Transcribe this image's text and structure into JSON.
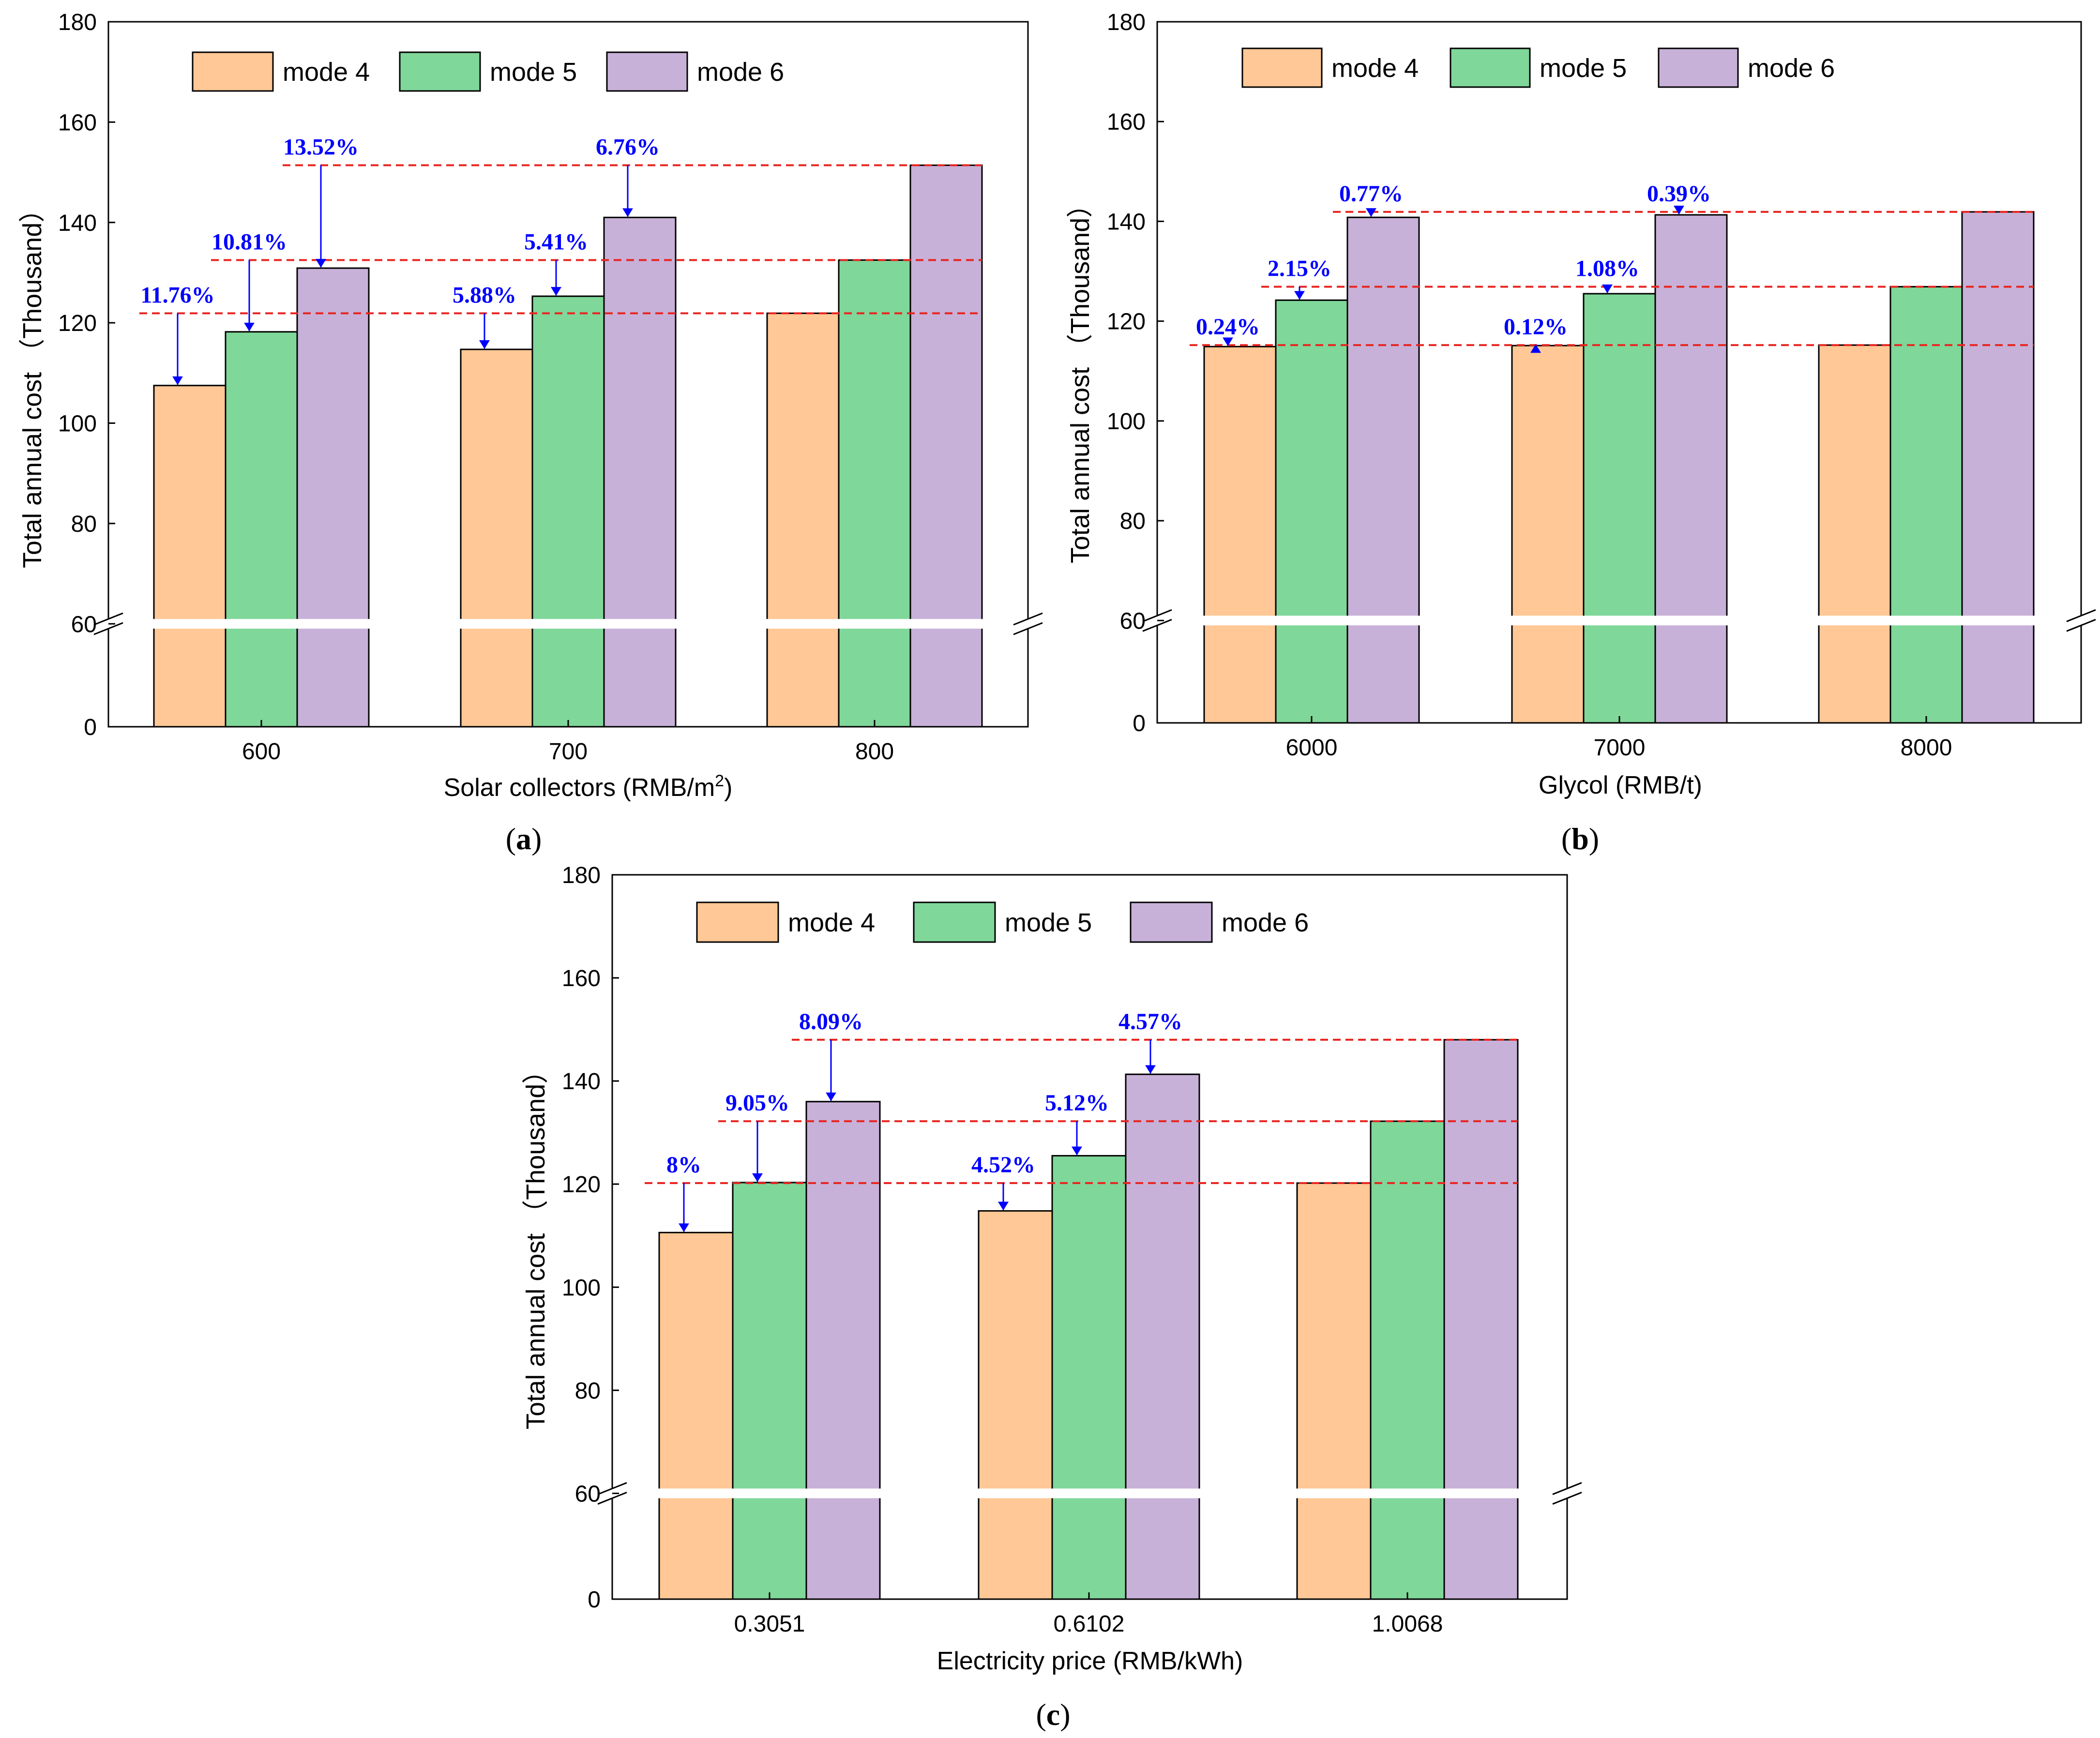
{
  "colors": {
    "mode4": "#FFC896",
    "mode5": "#7FD79A",
    "mode6": "#C8B1D8",
    "annotation": "#0000FF",
    "reference_line": "#E8231F",
    "axis": "#000000"
  },
  "chart_data": [
    {
      "type": "bar",
      "panel_label_open": "(",
      "panel_label_letter": "a",
      "panel_label_close": ")",
      "xlabel": "Solar collectors (RMB/m",
      "xlabel_sup": "2",
      "xlabel_end": ")",
      "ylabel": "Total annual cost （Thousand）",
      "ylim": [
        0,
        180
      ],
      "axis_break": [
        0,
        60
      ],
      "yticks": [
        "0",
        "60",
        "80",
        "100",
        "120",
        "140",
        "160",
        "180"
      ],
      "legend": [
        "mode 4",
        "mode 5",
        "mode 6"
      ],
      "legend_position": "top-left",
      "categories": [
        "600",
        "700",
        "800"
      ],
      "series": [
        {
          "name": "mode 4",
          "values": [
            107.5,
            114.7,
            121.9
          ]
        },
        {
          "name": "mode 5",
          "values": [
            118.2,
            125.3,
            132.5
          ]
        },
        {
          "name": "mode 6",
          "values": [
            130.9,
            141.0,
            151.4
          ]
        }
      ],
      "annotations": [
        {
          "text": "11.76%",
          "category": 0,
          "series": 0,
          "ref_category": 2
        },
        {
          "text": "10.81%",
          "category": 0,
          "series": 1,
          "ref_category": 2
        },
        {
          "text": "13.52%",
          "category": 0,
          "series": 2,
          "ref_category": 2
        },
        {
          "text": "5.88%",
          "category": 1,
          "series": 0,
          "ref_category": 2
        },
        {
          "text": "5.41%",
          "category": 1,
          "series": 1,
          "ref_category": 2
        },
        {
          "text": "6.76%",
          "category": 1,
          "series": 2,
          "ref_category": 2
        }
      ]
    },
    {
      "type": "bar",
      "panel_label_open": "(",
      "panel_label_letter": "b",
      "panel_label_close": ")",
      "xlabel": "Glycol (RMB/t)",
      "xlabel_sup": "",
      "xlabel_end": "",
      "ylabel": "Total annual cost （Thousand）",
      "ylim": [
        0,
        180
      ],
      "axis_break": [
        0,
        60
      ],
      "yticks": [
        "0",
        "60",
        "80",
        "100",
        "120",
        "140",
        "160",
        "180"
      ],
      "legend": [
        "mode 4",
        "mode 5",
        "mode 6"
      ],
      "legend_position": "top-left",
      "categories": [
        "6000",
        "7000",
        "8000"
      ],
      "series": [
        {
          "name": "mode 4",
          "values": [
            114.9,
            115.1,
            115.2
          ]
        },
        {
          "name": "mode 5",
          "values": [
            124.2,
            125.5,
            126.9
          ]
        },
        {
          "name": "mode 6",
          "values": [
            140.8,
            141.3,
            141.9
          ]
        }
      ],
      "annotations": [
        {
          "text": "0.24%",
          "category": 0,
          "series": 0,
          "ref_category": 2
        },
        {
          "text": "2.15%",
          "category": 0,
          "series": 1,
          "ref_category": 2
        },
        {
          "text": "0.77%",
          "category": 0,
          "series": 2,
          "ref_category": 2
        },
        {
          "text": "0.12%",
          "category": 1,
          "series": 0,
          "ref_category": 2
        },
        {
          "text": "1.08%",
          "category": 1,
          "series": 1,
          "ref_category": 2
        },
        {
          "text": "0.39%",
          "category": 1,
          "series": 2,
          "ref_category": 2
        }
      ]
    },
    {
      "type": "bar",
      "panel_label_open": "(",
      "panel_label_letter": "c",
      "panel_label_close": ")",
      "xlabel": "Electricity price (RMB/kWh)",
      "xlabel_sup": "",
      "xlabel_end": "",
      "ylabel": "Total annual cost （Thousand）",
      "ylim": [
        0,
        180
      ],
      "axis_break": [
        0,
        60
      ],
      "yticks": [
        "0",
        "60",
        "80",
        "100",
        "120",
        "140",
        "160",
        "180"
      ],
      "legend": [
        "mode 4",
        "mode 5",
        "mode 6"
      ],
      "legend_position": "top-left",
      "categories": [
        "0.3051",
        "0.6102",
        "1.0068"
      ],
      "series": [
        {
          "name": "mode 4",
          "values": [
            110.6,
            114.8,
            120.2
          ]
        },
        {
          "name": "mode 5",
          "values": [
            120.3,
            125.5,
            132.2
          ]
        },
        {
          "name": "mode 6",
          "values": [
            136.0,
            141.3,
            148.0
          ]
        }
      ],
      "annotations": [
        {
          "text": "8%",
          "category": 0,
          "series": 0,
          "ref_category": 2
        },
        {
          "text": "9.05%",
          "category": 0,
          "series": 1,
          "ref_category": 2
        },
        {
          "text": "8.09%",
          "category": 0,
          "series": 2,
          "ref_category": 2
        },
        {
          "text": "4.52%",
          "category": 1,
          "series": 0,
          "ref_category": 2
        },
        {
          "text": "5.12%",
          "category": 1,
          "series": 1,
          "ref_category": 2
        },
        {
          "text": "4.57%",
          "category": 1,
          "series": 2,
          "ref_category": 2
        }
      ]
    }
  ]
}
